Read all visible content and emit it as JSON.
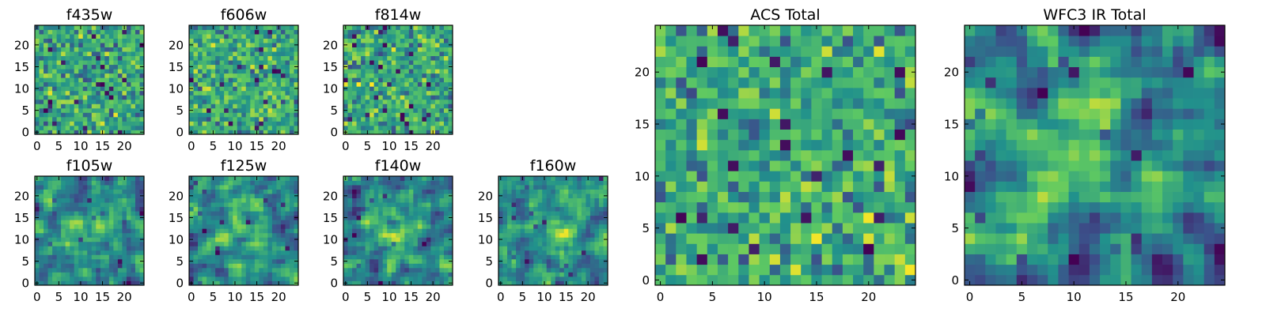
{
  "figure": {
    "colormap": "viridis",
    "colormap_stops": [
      "#440154",
      "#3b528b",
      "#21918c",
      "#5ec962",
      "#fde725"
    ],
    "background": "#ffffff"
  },
  "chart_data": [
    {
      "type": "heatmap",
      "title": "f435w",
      "grid_size": 25,
      "xlim": [
        -0.5,
        24.5
      ],
      "ylim": [
        -0.5,
        24.5
      ],
      "xticks": [
        0,
        5,
        10,
        15,
        20
      ],
      "yticks": [
        0,
        5,
        10,
        15,
        20
      ],
      "pattern": "uniform-noise",
      "colormap": "viridis"
    },
    {
      "type": "heatmap",
      "title": "f606w",
      "grid_size": 25,
      "xlim": [
        -0.5,
        24.5
      ],
      "ylim": [
        -0.5,
        24.5
      ],
      "xticks": [
        0,
        5,
        10,
        15,
        20
      ],
      "yticks": [
        0,
        5,
        10,
        15,
        20
      ],
      "pattern": "uniform-noise",
      "colormap": "viridis"
    },
    {
      "type": "heatmap",
      "title": "f814w",
      "grid_size": 25,
      "xlim": [
        -0.5,
        24.5
      ],
      "ylim": [
        -0.5,
        24.5
      ],
      "xticks": [
        0,
        5,
        10,
        15,
        20
      ],
      "yticks": [
        0,
        5,
        10,
        15,
        20
      ],
      "pattern": "uniform-noise",
      "colormap": "viridis"
    },
    {
      "type": "heatmap",
      "title": "f105w",
      "grid_size": 25,
      "xlim": [
        -0.5,
        24.5
      ],
      "ylim": [
        -0.5,
        24.5
      ],
      "xticks": [
        0,
        5,
        10,
        15,
        20
      ],
      "yticks": [
        0,
        5,
        10,
        15,
        20
      ],
      "pattern": "central-source",
      "colormap": "viridis"
    },
    {
      "type": "heatmap",
      "title": "f125w",
      "grid_size": 25,
      "xlim": [
        -0.5,
        24.5
      ],
      "ylim": [
        -0.5,
        24.5
      ],
      "xticks": [
        0,
        5,
        10,
        15,
        20
      ],
      "yticks": [
        0,
        5,
        10,
        15,
        20
      ],
      "pattern": "central-source",
      "colormap": "viridis"
    },
    {
      "type": "heatmap",
      "title": "f140w",
      "grid_size": 25,
      "xlim": [
        -0.5,
        24.5
      ],
      "ylim": [
        -0.5,
        24.5
      ],
      "xticks": [
        0,
        5,
        10,
        15,
        20
      ],
      "yticks": [
        0,
        5,
        10,
        15,
        20
      ],
      "pattern": "central-source",
      "colormap": "viridis"
    },
    {
      "type": "heatmap",
      "title": "f160w",
      "grid_size": 25,
      "xlim": [
        -0.5,
        24.5
      ],
      "ylim": [
        -0.5,
        24.5
      ],
      "xticks": [
        0,
        5,
        10,
        15,
        20
      ],
      "yticks": [
        0,
        5,
        10,
        15,
        20
      ],
      "pattern": "central-source",
      "colormap": "viridis"
    },
    {
      "type": "heatmap",
      "title": "ACS Total",
      "grid_size": 25,
      "xlim": [
        -0.5,
        24.5
      ],
      "ylim": [
        -0.5,
        24.5
      ],
      "xticks": [
        0,
        5,
        10,
        15,
        20
      ],
      "yticks": [
        0,
        5,
        10,
        15,
        20
      ],
      "pattern": "uniform-noise",
      "colormap": "viridis"
    },
    {
      "type": "heatmap",
      "title": "WFC3 IR Total",
      "grid_size": 25,
      "xlim": [
        -0.5,
        24.5
      ],
      "ylim": [
        -0.5,
        24.5
      ],
      "xticks": [
        0,
        5,
        10,
        15,
        20
      ],
      "yticks": [
        0,
        5,
        10,
        15,
        20
      ],
      "pattern": "central-source",
      "colormap": "viridis"
    }
  ]
}
